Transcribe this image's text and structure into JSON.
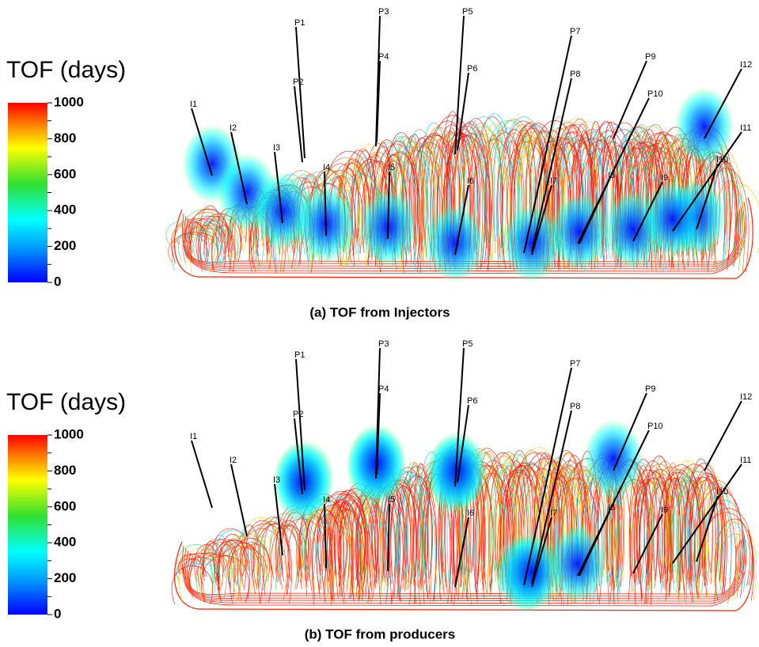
{
  "panels": [
    {
      "colorbar": {
        "title": "TOF (days)",
        "ticks": [
          0,
          200,
          400,
          600,
          800,
          1000
        ]
      },
      "wells": [
        "P1",
        "P2",
        "P3",
        "P4",
        "P5",
        "P6",
        "P7",
        "P8",
        "P9",
        "P10",
        "I1",
        "I2",
        "I3",
        "I4",
        "I5",
        "I6",
        "I7",
        "I8",
        "I9",
        "I10",
        "I11",
        "I12"
      ],
      "caption": "(a) TOF from Injectors"
    },
    {
      "colorbar": {
        "title": "TOF (days)",
        "ticks": [
          0,
          200,
          400,
          600,
          800,
          1000
        ]
      },
      "wells": [
        "P1",
        "P2",
        "P3",
        "P4",
        "P5",
        "P6",
        "P7",
        "P8",
        "P9",
        "P10",
        "I1",
        "I2",
        "I3",
        "I4",
        "I5",
        "I6",
        "I7",
        "I8",
        "I9",
        "I10",
        "I11",
        "I12"
      ],
      "caption": "(b) TOF from producers"
    }
  ]
}
